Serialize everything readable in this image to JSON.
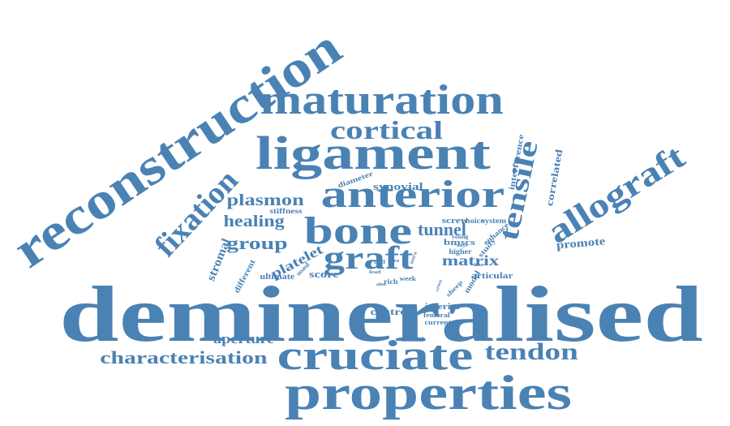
{
  "word_cloud": {
    "color": "#4a82b4",
    "words": [
      {
        "text": "demineralised"
      },
      {
        "text": "reconstruction"
      },
      {
        "text": "properties"
      },
      {
        "text": "maturation"
      },
      {
        "text": "ligament"
      },
      {
        "text": "cruciate"
      },
      {
        "text": "anterior"
      },
      {
        "text": "bone"
      },
      {
        "text": "allograft"
      },
      {
        "text": "fixation"
      },
      {
        "text": "graft"
      },
      {
        "text": "tensile"
      },
      {
        "text": "cortical"
      },
      {
        "text": "tendon"
      },
      {
        "text": "characterisation"
      },
      {
        "text": "group"
      },
      {
        "text": "healing"
      },
      {
        "text": "plasmon"
      },
      {
        "text": "tunnel"
      },
      {
        "text": "aperture"
      },
      {
        "text": "platelet"
      },
      {
        "text": "matrix"
      },
      {
        "text": "stromal"
      },
      {
        "text": "promote"
      },
      {
        "text": "synovial"
      },
      {
        "text": "correlated"
      },
      {
        "text": "score"
      },
      {
        "text": "control"
      },
      {
        "text": "inferior"
      },
      {
        "text": "bmscs"
      },
      {
        "text": "interference"
      },
      {
        "text": "articular"
      },
      {
        "text": "screw"
      },
      {
        "text": "different"
      },
      {
        "text": "ultimate"
      },
      {
        "text": "diameter"
      },
      {
        "text": "stiffness"
      },
      {
        "text": "enhance"
      },
      {
        "text": "system"
      },
      {
        "text": "choice"
      },
      {
        "text": "higher"
      },
      {
        "text": "study"
      },
      {
        "text": "model"
      },
      {
        "text": "femoral"
      },
      {
        "text": "current"
      },
      {
        "text": "animal"
      },
      {
        "text": "rich"
      },
      {
        "text": "week"
      },
      {
        "text": "used"
      },
      {
        "text": "young"
      },
      {
        "text": "sheep"
      },
      {
        "text": "cell"
      },
      {
        "text": "intra"
      },
      {
        "text": "vitro"
      },
      {
        "text": "lead"
      },
      {
        "text": "days"
      },
      {
        "text": "cross"
      },
      {
        "text": "like"
      },
      {
        "text": "also"
      }
    ]
  }
}
